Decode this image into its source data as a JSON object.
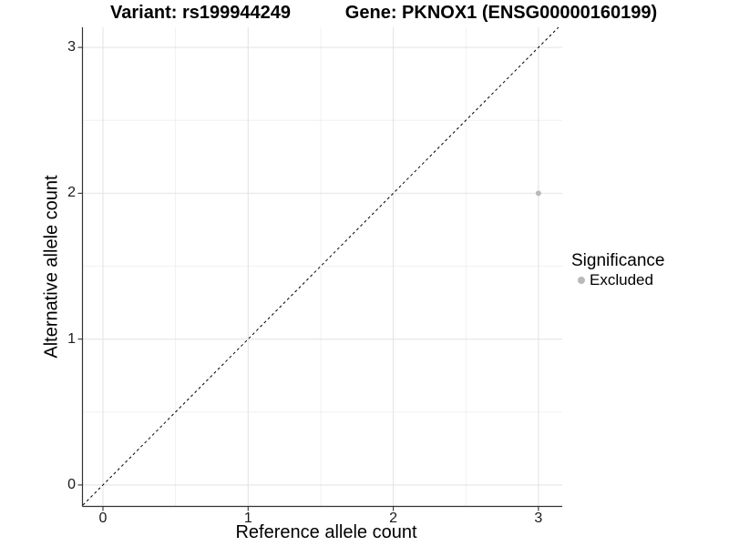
{
  "chart_data": {
    "type": "scatter",
    "title_left": "Variant: rs199944249",
    "title_right": "Gene: PKNOX1 (ENSG00000160199)",
    "xlabel": "Reference allele count",
    "ylabel": "Alternative allele count",
    "xlim": [
      -0.138,
      3.164
    ],
    "ylim": [
      -0.144,
      3.138
    ],
    "xticks": [
      0,
      1,
      2,
      3
    ],
    "yticks": [
      0,
      1,
      2,
      3
    ],
    "xticks_minor": [
      0.5,
      1.5,
      2.5
    ],
    "yticks_minor": [
      0.5,
      1.5,
      2.5
    ],
    "grid": "major and minor, light gray on white",
    "points": [
      {
        "x": 3,
        "y": 2,
        "series": "Excluded"
      }
    ],
    "reference_line": {
      "kind": "identity y=x",
      "from": [
        -0.138,
        -0.138
      ],
      "to": [
        3.138,
        3.138
      ],
      "style": "dashed",
      "color": "#000000"
    },
    "legend": {
      "position": "right",
      "title": "Significance",
      "items": [
        {
          "label": "Excluded",
          "color": "#b9b9b9"
        }
      ]
    },
    "colors": {
      "point": "#b9b9b9",
      "grid_major": "#e4e4e4",
      "grid_minor": "#efefef",
      "axis_line": "#333333",
      "tick_text": "#1a1a1a",
      "title_text": "#000000"
    }
  }
}
